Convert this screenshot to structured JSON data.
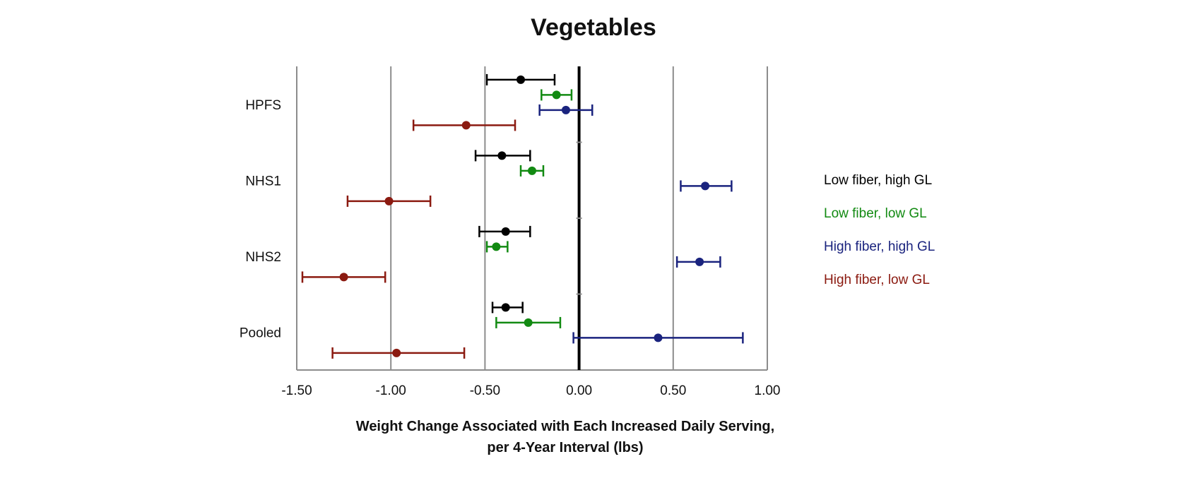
{
  "chart_data": {
    "type": "scatter",
    "subtype": "forest-plot",
    "title": "Vegetables",
    "xlabel_lines": [
      "Weight Change Associated with Each Increased Daily Serving,",
      "per 4-Year Interval (lbs)"
    ],
    "ylabel": "",
    "xlim": [
      -1.5,
      1.0
    ],
    "x_ticks": [
      -1.5,
      -1.0,
      -0.5,
      0.0,
      0.5,
      1.0
    ],
    "x_tick_labels": [
      "-1.50",
      "-1.00",
      "-0.50",
      "0.00",
      "0.50",
      "1.00"
    ],
    "grid": "vertical",
    "legend_position": "right",
    "categories": [
      "HPFS",
      "NHS1",
      "NHS2",
      "Pooled"
    ],
    "series": [
      {
        "name": "Low fiber, high GL",
        "color": "#000000",
        "estimates": [
          -0.31,
          -0.41,
          -0.39,
          -0.39
        ],
        "ci_low": [
          -0.49,
          -0.55,
          -0.53,
          -0.46
        ],
        "ci_high": [
          -0.13,
          -0.26,
          -0.26,
          -0.3
        ]
      },
      {
        "name": "Low fiber, low GL",
        "color": "#128a12",
        "estimates": [
          -0.12,
          -0.25,
          -0.44,
          -0.27
        ],
        "ci_low": [
          -0.2,
          -0.31,
          -0.49,
          -0.44
        ],
        "ci_high": [
          -0.04,
          -0.19,
          -0.38,
          -0.1
        ]
      },
      {
        "name": "High fiber, high GL",
        "color": "#1a237e",
        "estimates": [
          -0.07,
          0.67,
          0.64,
          0.42
        ],
        "ci_low": [
          -0.21,
          0.54,
          0.52,
          -0.03
        ],
        "ci_high": [
          0.07,
          0.81,
          0.75,
          0.87
        ]
      },
      {
        "name": "High fiber, low GL",
        "color": "#8b1a10",
        "estimates": [
          -0.6,
          -1.01,
          -1.25,
          -0.97
        ],
        "ci_low": [
          -0.88,
          -1.23,
          -1.47,
          -1.31
        ],
        "ci_high": [
          -0.34,
          -0.79,
          -1.03,
          -0.61
        ]
      }
    ]
  }
}
